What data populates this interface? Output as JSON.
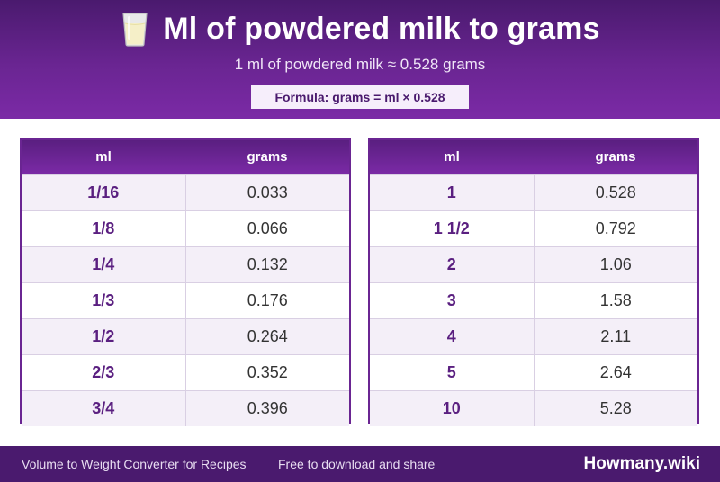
{
  "header": {
    "title": "Ml of powdered milk to grams",
    "subtitle": "1 ml of powdered milk ≈ 0.528 grams",
    "formula": "Formula: grams = ml × 0.528",
    "icon": "milk-glass-icon"
  },
  "columns": {
    "ml": "ml",
    "grams": "grams"
  },
  "left_rows": [
    {
      "ml": "1/16",
      "grams": "0.033"
    },
    {
      "ml": "1/8",
      "grams": "0.066"
    },
    {
      "ml": "1/4",
      "grams": "0.132"
    },
    {
      "ml": "1/3",
      "grams": "0.176"
    },
    {
      "ml": "1/2",
      "grams": "0.264"
    },
    {
      "ml": "2/3",
      "grams": "0.352"
    },
    {
      "ml": "3/4",
      "grams": "0.396"
    }
  ],
  "right_rows": [
    {
      "ml": "1",
      "grams": "0.528"
    },
    {
      "ml": "1 1/2",
      "grams": "0.792"
    },
    {
      "ml": "2",
      "grams": "1.06"
    },
    {
      "ml": "3",
      "grams": "1.58"
    },
    {
      "ml": "4",
      "grams": "2.11"
    },
    {
      "ml": "5",
      "grams": "2.64"
    },
    {
      "ml": "10",
      "grams": "5.28"
    }
  ],
  "footer": {
    "left_text": "Volume to Weight Converter for Recipes",
    "middle_text": "Free to download and share",
    "brand": "Howmany.wiki"
  },
  "colors": {
    "primary": "#6a2592",
    "dark": "#4a1a6e",
    "row_alt": "#f4eff8"
  }
}
